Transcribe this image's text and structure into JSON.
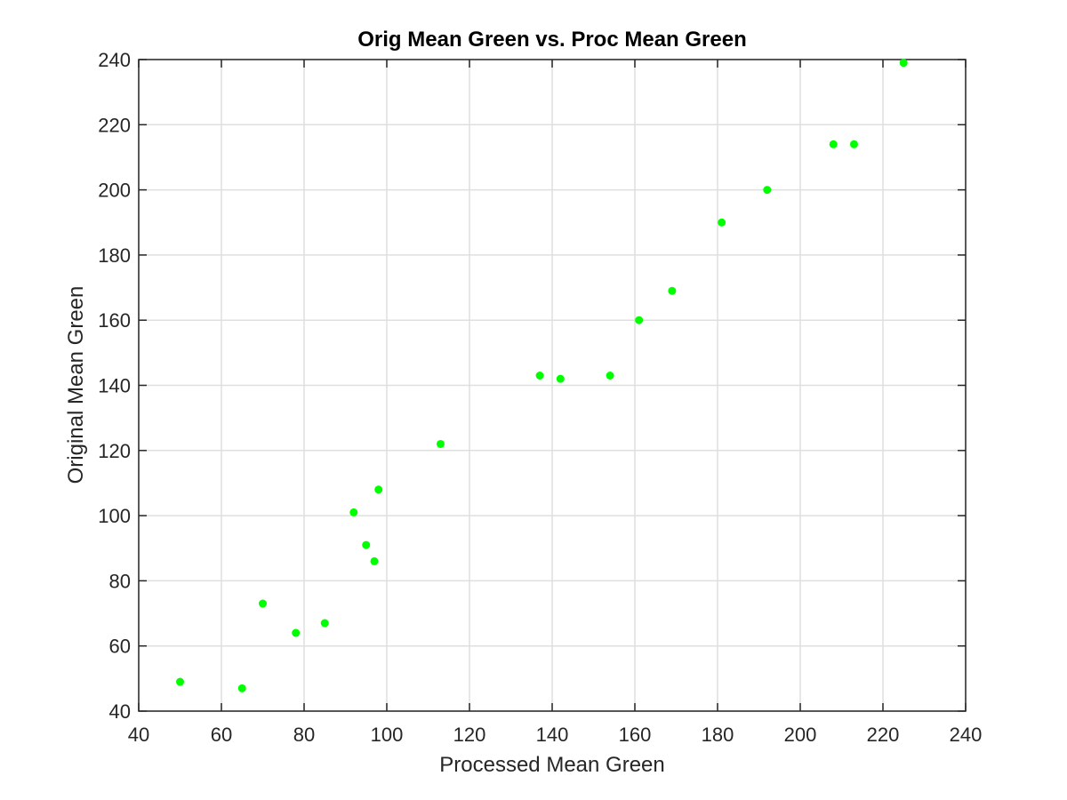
{
  "chart_data": {
    "type": "scatter",
    "title": "Orig Mean Green vs. Proc Mean Green",
    "xlabel": "Processed Mean Green",
    "ylabel": "Original Mean Green",
    "xlim": [
      40,
      240
    ],
    "ylim": [
      40,
      240
    ],
    "xticks": [
      "40",
      "60",
      "80",
      "100",
      "120",
      "140",
      "160",
      "180",
      "200",
      "220",
      "240"
    ],
    "yticks": [
      "40",
      "60",
      "80",
      "100",
      "120",
      "140",
      "160",
      "180",
      "200",
      "220",
      "240"
    ],
    "grid": true,
    "marker_color": "#00ff00",
    "series": [
      {
        "points": [
          {
            "x": 50,
            "y": 49
          },
          {
            "x": 65,
            "y": 47
          },
          {
            "x": 70,
            "y": 73
          },
          {
            "x": 78,
            "y": 64
          },
          {
            "x": 85,
            "y": 67
          },
          {
            "x": 92,
            "y": 101
          },
          {
            "x": 95,
            "y": 91
          },
          {
            "x": 97,
            "y": 86
          },
          {
            "x": 98,
            "y": 108
          },
          {
            "x": 113,
            "y": 122
          },
          {
            "x": 137,
            "y": 143
          },
          {
            "x": 142,
            "y": 142
          },
          {
            "x": 154,
            "y": 143
          },
          {
            "x": 161,
            "y": 160
          },
          {
            "x": 169,
            "y": 169
          },
          {
            "x": 181,
            "y": 190
          },
          {
            "x": 192,
            "y": 200
          },
          {
            "x": 208,
            "y": 214
          },
          {
            "x": 213,
            "y": 214
          },
          {
            "x": 225,
            "y": 239
          }
        ]
      }
    ]
  }
}
